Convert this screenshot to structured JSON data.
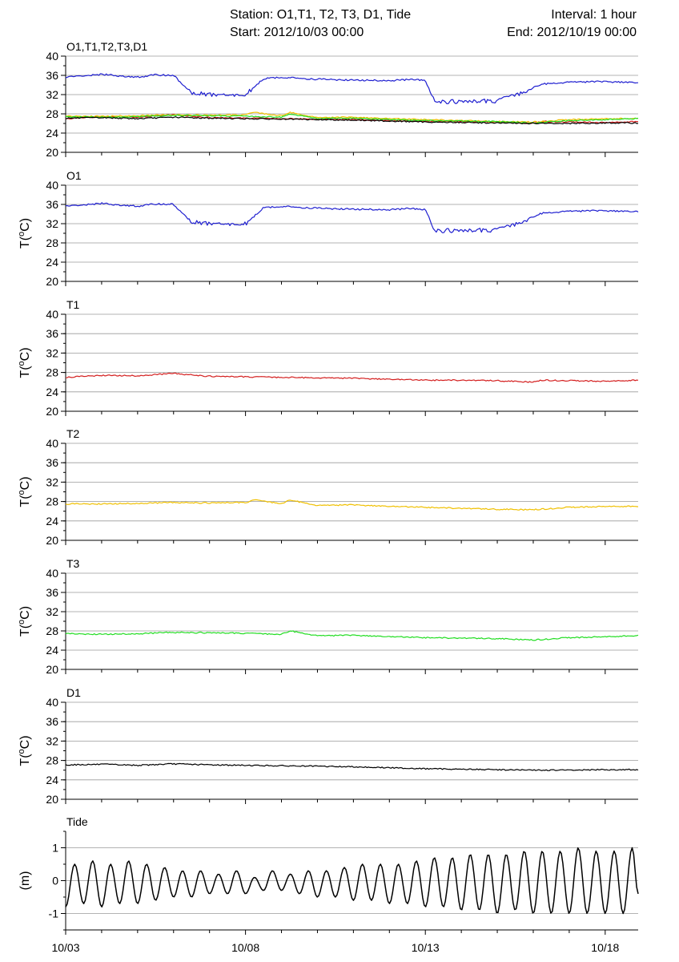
{
  "header": {
    "station": "Station: O1,T1, T2, T3, D1, Tide",
    "interval": "Interval: 1 hour",
    "start": "Start: 2012/10/03 00:00",
    "end": "End: 2012/10/19 00:00"
  },
  "colors": {
    "O1": "#1f1fd0",
    "T1": "#d41f1f",
    "T2": "#f0c000",
    "T3": "#22dd22",
    "D1": "#000000",
    "Tide": "#000000",
    "grid": "#9a9a9a"
  },
  "x_axis": {
    "type": "date",
    "range": [
      "2012-10-03",
      "2012-10-18 22:00"
    ],
    "tick_dates": [
      "2012-10-03",
      "2012-10-08",
      "2012-10-13",
      "2012-10-18"
    ],
    "tick_labels": [
      "10/03",
      "10/08",
      "10/13",
      "10/18"
    ]
  },
  "chart_data": [
    {
      "type": "line",
      "title": "O1,T1,T2,T3,D1",
      "ylabel": "",
      "ylim": [
        20,
        40
      ],
      "yticks": [
        20,
        24,
        28,
        32,
        36,
        40
      ],
      "grid": true,
      "series": [
        {
          "key": "O1",
          "x": [
            "2012-10-03",
            "2012-10-04",
            "2012-10-05",
            "2012-10-05 12:00",
            "2012-10-06",
            "2012-10-06 12:00",
            "2012-10-07",
            "2012-10-07 12:00",
            "2012-10-08",
            "2012-10-08 12:00",
            "2012-10-09",
            "2012-10-10",
            "2012-10-11",
            "2012-10-12",
            "2012-10-12 12:00",
            "2012-10-13",
            "2012-10-13 06:00",
            "2012-10-14",
            "2012-10-15",
            "2012-10-15 18:00",
            "2012-10-16 06:00",
            "2012-10-17",
            "2012-10-18",
            "2012-10-18 22:00"
          ],
          "y": [
            35.6,
            36.2,
            35.6,
            36.1,
            36.0,
            32.3,
            32.0,
            31.8,
            31.9,
            35.3,
            35.6,
            35.2,
            35.0,
            34.9,
            35.1,
            35.0,
            30.6,
            30.5,
            30.7,
            32.6,
            34.2,
            34.6,
            34.7,
            34.5
          ]
        },
        {
          "key": "T1",
          "x": [
            "2012-10-03",
            "2012-10-04",
            "2012-10-05",
            "2012-10-06",
            "2012-10-07",
            "2012-10-08",
            "2012-10-09",
            "2012-10-10",
            "2012-10-11",
            "2012-10-12",
            "2012-10-13",
            "2012-10-14",
            "2012-10-15",
            "2012-10-16",
            "2012-10-16 06:00",
            "2012-10-17",
            "2012-10-18",
            "2012-10-18 22:00"
          ],
          "y": [
            27.0,
            27.4,
            27.3,
            27.8,
            27.2,
            27.1,
            27.0,
            26.9,
            26.8,
            26.6,
            26.4,
            26.4,
            26.3,
            26.0,
            26.4,
            26.3,
            26.2,
            26.4
          ]
        },
        {
          "key": "T2",
          "x": [
            "2012-10-03",
            "2012-10-04",
            "2012-10-05",
            "2012-10-06",
            "2012-10-07",
            "2012-10-08",
            "2012-10-08 06:00",
            "2012-10-09",
            "2012-10-09 06:00",
            "2012-10-10",
            "2012-10-11",
            "2012-10-12",
            "2012-10-13",
            "2012-10-14",
            "2012-10-15",
            "2012-10-16",
            "2012-10-17",
            "2012-10-18",
            "2012-10-18 22:00"
          ],
          "y": [
            27.5,
            27.5,
            27.6,
            27.8,
            27.7,
            27.8,
            28.3,
            27.6,
            28.3,
            27.2,
            27.3,
            27.0,
            26.8,
            26.6,
            26.4,
            26.3,
            26.8,
            27.0,
            27.0
          ]
        },
        {
          "key": "T3",
          "x": [
            "2012-10-03",
            "2012-10-04",
            "2012-10-05",
            "2012-10-06",
            "2012-10-07",
            "2012-10-08",
            "2012-10-09",
            "2012-10-09 06:00",
            "2012-10-10",
            "2012-10-11",
            "2012-10-12",
            "2012-10-13",
            "2012-10-14",
            "2012-10-15",
            "2012-10-16",
            "2012-10-17",
            "2012-10-18",
            "2012-10-18 22:00"
          ],
          "y": [
            27.4,
            27.3,
            27.4,
            27.7,
            27.6,
            27.5,
            27.3,
            28.0,
            27.0,
            27.1,
            26.8,
            26.6,
            26.5,
            26.4,
            26.1,
            26.6,
            26.8,
            27.0
          ]
        },
        {
          "key": "D1",
          "x": [
            "2012-10-03",
            "2012-10-04",
            "2012-10-05",
            "2012-10-06",
            "2012-10-07",
            "2012-10-08",
            "2012-10-09",
            "2012-10-10",
            "2012-10-11",
            "2012-10-12",
            "2012-10-13",
            "2012-10-14",
            "2012-10-15",
            "2012-10-16",
            "2012-10-17",
            "2012-10-18",
            "2012-10-18 22:00"
          ],
          "y": [
            27.1,
            27.2,
            27.0,
            27.3,
            27.1,
            27.0,
            26.9,
            26.8,
            26.7,
            26.5,
            26.3,
            26.2,
            26.1,
            26.0,
            26.0,
            26.1,
            26.1
          ]
        }
      ]
    },
    {
      "type": "line",
      "title": "O1",
      "ylabel": "T(oC)",
      "ylim": [
        20,
        40
      ],
      "yticks": [
        20,
        24,
        28,
        32,
        36,
        40
      ],
      "grid": true,
      "series": [
        {
          "key": "O1",
          "x": [
            "2012-10-03",
            "2012-10-04",
            "2012-10-05",
            "2012-10-05 12:00",
            "2012-10-06",
            "2012-10-06 12:00",
            "2012-10-07",
            "2012-10-07 12:00",
            "2012-10-08",
            "2012-10-08 12:00",
            "2012-10-09",
            "2012-10-10",
            "2012-10-11",
            "2012-10-12",
            "2012-10-12 12:00",
            "2012-10-13",
            "2012-10-13 06:00",
            "2012-10-14",
            "2012-10-15",
            "2012-10-15 18:00",
            "2012-10-16 06:00",
            "2012-10-17",
            "2012-10-18",
            "2012-10-18 22:00"
          ],
          "y": [
            35.6,
            36.2,
            35.6,
            36.1,
            36.0,
            32.3,
            32.0,
            31.8,
            31.9,
            35.3,
            35.6,
            35.2,
            35.0,
            34.9,
            35.1,
            35.0,
            30.6,
            30.5,
            30.7,
            32.6,
            34.2,
            34.6,
            34.7,
            34.5
          ]
        }
      ]
    },
    {
      "type": "line",
      "title": "T1",
      "ylabel": "T(oC)",
      "ylim": [
        20,
        40
      ],
      "yticks": [
        20,
        24,
        28,
        32,
        36,
        40
      ],
      "grid": true,
      "series": [
        {
          "key": "T1",
          "x": [
            "2012-10-03",
            "2012-10-04",
            "2012-10-05",
            "2012-10-06",
            "2012-10-07",
            "2012-10-08",
            "2012-10-09",
            "2012-10-10",
            "2012-10-11",
            "2012-10-12",
            "2012-10-13",
            "2012-10-14",
            "2012-10-15",
            "2012-10-16",
            "2012-10-16 06:00",
            "2012-10-17",
            "2012-10-18",
            "2012-10-18 22:00"
          ],
          "y": [
            27.0,
            27.4,
            27.3,
            27.8,
            27.2,
            27.1,
            27.0,
            26.9,
            26.8,
            26.6,
            26.4,
            26.4,
            26.3,
            26.0,
            26.4,
            26.3,
            26.2,
            26.4
          ]
        }
      ]
    },
    {
      "type": "line",
      "title": "T2",
      "ylabel": "T(oC)",
      "ylim": [
        20,
        40
      ],
      "yticks": [
        20,
        24,
        28,
        32,
        36,
        40
      ],
      "grid": true,
      "series": [
        {
          "key": "T2",
          "x": [
            "2012-10-03",
            "2012-10-04",
            "2012-10-05",
            "2012-10-06",
            "2012-10-07",
            "2012-10-08",
            "2012-10-08 06:00",
            "2012-10-09",
            "2012-10-09 06:00",
            "2012-10-10",
            "2012-10-11",
            "2012-10-12",
            "2012-10-13",
            "2012-10-14",
            "2012-10-15",
            "2012-10-16",
            "2012-10-17",
            "2012-10-18",
            "2012-10-18 22:00"
          ],
          "y": [
            27.5,
            27.5,
            27.6,
            27.8,
            27.7,
            27.8,
            28.3,
            27.6,
            28.3,
            27.2,
            27.3,
            27.0,
            26.8,
            26.6,
            26.4,
            26.3,
            26.8,
            27.0,
            27.0
          ]
        }
      ]
    },
    {
      "type": "line",
      "title": "T3",
      "ylabel": "T(oC)",
      "ylim": [
        20,
        40
      ],
      "yticks": [
        20,
        24,
        28,
        32,
        36,
        40
      ],
      "grid": true,
      "series": [
        {
          "key": "T3",
          "x": [
            "2012-10-03",
            "2012-10-04",
            "2012-10-05",
            "2012-10-06",
            "2012-10-07",
            "2012-10-08",
            "2012-10-09",
            "2012-10-09 06:00",
            "2012-10-10",
            "2012-10-11",
            "2012-10-12",
            "2012-10-13",
            "2012-10-14",
            "2012-10-15",
            "2012-10-16",
            "2012-10-17",
            "2012-10-18",
            "2012-10-18 22:00"
          ],
          "y": [
            27.4,
            27.3,
            27.4,
            27.7,
            27.6,
            27.5,
            27.3,
            28.0,
            27.0,
            27.1,
            26.8,
            26.6,
            26.5,
            26.4,
            26.1,
            26.6,
            26.8,
            27.0
          ]
        }
      ]
    },
    {
      "type": "line",
      "title": "D1",
      "ylabel": "T(oC)",
      "ylim": [
        20,
        40
      ],
      "yticks": [
        20,
        24,
        28,
        32,
        36,
        40
      ],
      "grid": true,
      "series": [
        {
          "key": "D1",
          "x": [
            "2012-10-03",
            "2012-10-04",
            "2012-10-05",
            "2012-10-06",
            "2012-10-07",
            "2012-10-08",
            "2012-10-09",
            "2012-10-10",
            "2012-10-11",
            "2012-10-12",
            "2012-10-13",
            "2012-10-14",
            "2012-10-15",
            "2012-10-16",
            "2012-10-17",
            "2012-10-18",
            "2012-10-18 22:00"
          ],
          "y": [
            27.1,
            27.2,
            27.0,
            27.3,
            27.1,
            27.0,
            26.9,
            26.8,
            26.7,
            26.5,
            26.3,
            26.2,
            26.1,
            26.0,
            26.0,
            26.1,
            26.1
          ]
        }
      ]
    },
    {
      "type": "line",
      "title": "Tide",
      "ylabel": "(m)",
      "ylim": [
        -1.5,
        1.5
      ],
      "yticks": [
        -1,
        0,
        1
      ],
      "grid": true,
      "series": [
        {
          "key": "Tide",
          "x": [
            "2012-10-03",
            "2012-10-03 06:00",
            "2012-10-03 12:00",
            "2012-10-03 18:00",
            "2012-10-04",
            "2012-10-04 06:00",
            "2012-10-04 12:00",
            "2012-10-04 18:00",
            "2012-10-05",
            "2012-10-05 06:00",
            "2012-10-05 12:00",
            "2012-10-05 18:00",
            "2012-10-06",
            "2012-10-06 06:00",
            "2012-10-06 12:00",
            "2012-10-06 18:00",
            "2012-10-07",
            "2012-10-07 06:00",
            "2012-10-07 12:00",
            "2012-10-07 18:00",
            "2012-10-08",
            "2012-10-08 06:00",
            "2012-10-08 12:00",
            "2012-10-08 18:00",
            "2012-10-09",
            "2012-10-09 06:00",
            "2012-10-09 12:00",
            "2012-10-09 18:00",
            "2012-10-10",
            "2012-10-10 06:00",
            "2012-10-10 12:00",
            "2012-10-10 18:00",
            "2012-10-11",
            "2012-10-11 06:00",
            "2012-10-11 12:00",
            "2012-10-11 18:00",
            "2012-10-12",
            "2012-10-12 06:00",
            "2012-10-12 12:00",
            "2012-10-12 18:00",
            "2012-10-13",
            "2012-10-13 06:00",
            "2012-10-13 12:00",
            "2012-10-13 18:00",
            "2012-10-14",
            "2012-10-14 06:00",
            "2012-10-14 12:00",
            "2012-10-14 18:00",
            "2012-10-15",
            "2012-10-15 06:00",
            "2012-10-15 12:00",
            "2012-10-15 18:00",
            "2012-10-16",
            "2012-10-16 06:00",
            "2012-10-16 12:00",
            "2012-10-16 18:00",
            "2012-10-17",
            "2012-10-17 06:00",
            "2012-10-17 12:00",
            "2012-10-17 18:00",
            "2012-10-18",
            "2012-10-18 06:00",
            "2012-10-18 12:00",
            "2012-10-18 18:00",
            "2012-10-18 22:00"
          ],
          "y": [
            -0.8,
            0.5,
            -0.7,
            0.6,
            -0.8,
            0.5,
            -0.7,
            0.6,
            -0.7,
            0.5,
            -0.6,
            0.4,
            -0.5,
            0.3,
            -0.5,
            0.3,
            -0.4,
            0.2,
            -0.4,
            0.3,
            -0.4,
            0.1,
            -0.3,
            0.3,
            -0.3,
            0.2,
            -0.4,
            0.3,
            -0.5,
            0.3,
            -0.5,
            0.4,
            -0.6,
            0.5,
            -0.6,
            0.5,
            -0.7,
            0.5,
            -0.7,
            0.6,
            -0.8,
            0.7,
            -0.8,
            0.7,
            -0.9,
            0.8,
            -0.9,
            0.8,
            -1.0,
            0.8,
            -0.9,
            0.9,
            -1.0,
            0.9,
            -1.0,
            0.9,
            -1.0,
            1.0,
            -1.0,
            0.9,
            -1.0,
            0.9,
            -1.0,
            1.0,
            -0.4
          ]
        }
      ]
    }
  ]
}
